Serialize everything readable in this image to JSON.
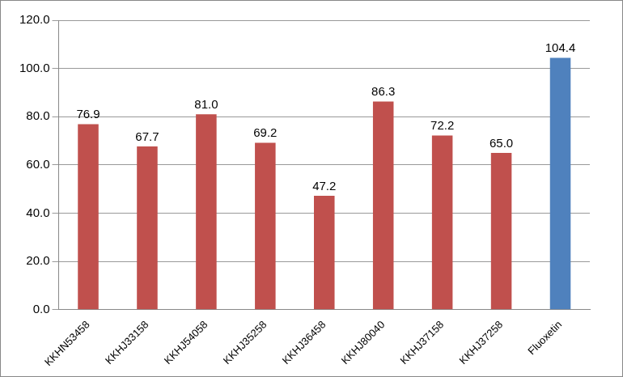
{
  "chart_data": {
    "type": "bar",
    "categories": [
      "KKHN53458",
      "KKHJ33158",
      "KKHJ54058",
      "KKHJ35258",
      "KKHJ36458",
      "KKHJ80040",
      "KKHJ37158",
      "KKHJ37258",
      "Fluoxetin"
    ],
    "values": [
      76.9,
      67.7,
      81.0,
      69.2,
      47.2,
      86.3,
      72.2,
      65.0,
      104.4
    ],
    "value_labels": [
      "76.9",
      "67.7",
      "81.0",
      "69.2",
      "47.2",
      "86.3",
      "72.2",
      "65.0",
      "104.4"
    ],
    "colors": [
      "#c0504d",
      "#c0504d",
      "#c0504d",
      "#c0504d",
      "#c0504d",
      "#c0504d",
      "#c0504d",
      "#c0504d",
      "#4f81bd"
    ],
    "ylim": [
      0,
      120
    ],
    "yticks": [
      {
        "value": 0,
        "label": "0.0"
      },
      {
        "value": 20,
        "label": "20.0"
      },
      {
        "value": 40,
        "label": "40.0"
      },
      {
        "value": 60,
        "label": "60.0"
      },
      {
        "value": 80,
        "label": "80.0"
      },
      {
        "value": 100,
        "label": "100.0"
      },
      {
        "value": 120,
        "label": "120.0"
      }
    ],
    "grid": true,
    "data_labels": true
  }
}
